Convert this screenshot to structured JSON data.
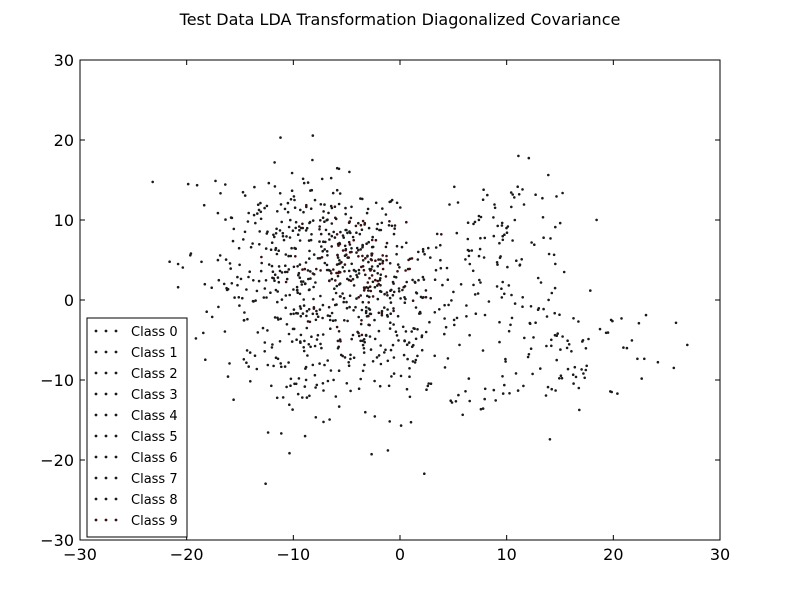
{
  "chart_data": {
    "type": "scatter",
    "title": "Test Data LDA Transformation Diagonalized Covariance",
    "xlabel": "",
    "ylabel": "",
    "xlim": [
      -30,
      30
    ],
    "ylim": [
      -30,
      30
    ],
    "x_ticks": [
      -30,
      -20,
      -10,
      0,
      10,
      20,
      30
    ],
    "y_ticks": [
      -30,
      -20,
      -10,
      0,
      10,
      20,
      30
    ],
    "grid": false,
    "legend_position": "lower-left",
    "series": [
      {
        "name": "Class 0",
        "color": "#1a1a1a",
        "center": [
          -6,
          5
        ],
        "spread": [
          3.5,
          5.0
        ],
        "count": 105
      },
      {
        "name": "Class 1",
        "color": "#1a1a1a",
        "center": [
          -11,
          9
        ],
        "spread": [
          3.5,
          5.0
        ],
        "count": 105
      },
      {
        "name": "Class 2",
        "color": "#1a1a1a",
        "center": [
          -9,
          -6
        ],
        "spread": [
          3.5,
          5.0
        ],
        "count": 105
      },
      {
        "name": "Class 3",
        "color": "#1a1a1a",
        "center": [
          -3,
          -2
        ],
        "spread": [
          4.0,
          5.5
        ],
        "count": 105
      },
      {
        "name": "Class 4",
        "color": "#1a1a1a",
        "center": [
          10,
          7
        ],
        "spread": [
          3.5,
          4.5
        ],
        "count": 105
      },
      {
        "name": "Class 5",
        "color": "#1a1a1a",
        "center": [
          -3,
          4
        ],
        "spread": [
          4.0,
          5.0
        ],
        "count": 105
      },
      {
        "name": "Class 6",
        "color": "#1a1a1a",
        "center": [
          15,
          -6
        ],
        "spread": [
          5.0,
          4.0
        ],
        "count": 105
      },
      {
        "name": "Class 7",
        "color": "#1a1a1a",
        "center": [
          -14,
          2
        ],
        "spread": [
          3.5,
          6.5
        ],
        "count": 105
      },
      {
        "name": "Class 8",
        "color": "#1a1a1a",
        "center": [
          0,
          -6
        ],
        "spread": [
          4.5,
          6.0
        ],
        "count": 105
      },
      {
        "name": "Class 9",
        "color": "#3a0f0f",
        "center": [
          -4,
          4
        ],
        "spread": [
          3.0,
          3.5
        ],
        "count": 105
      }
    ]
  }
}
